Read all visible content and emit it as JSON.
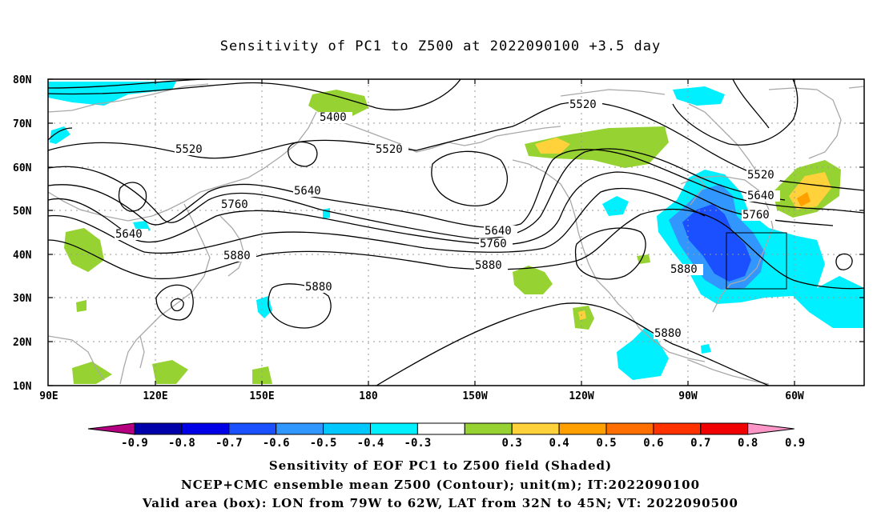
{
  "title": "Sensitivity of PC1 to Z500 at 2022090100 +3.5 day",
  "map": {
    "lat_labels": [
      "80N",
      "70N",
      "60N",
      "50N",
      "40N",
      "30N",
      "20N",
      "10N"
    ],
    "lon_labels": [
      "90E",
      "120E",
      "150E",
      "180",
      "150W",
      "120W",
      "90W",
      "60W"
    ],
    "contour_labels": [
      {
        "text": "5400"
      },
      {
        "text": "5520"
      },
      {
        "text": "5520"
      },
      {
        "text": "5520"
      },
      {
        "text": "5520"
      },
      {
        "text": "5640"
      },
      {
        "text": "5640"
      },
      {
        "text": "5640"
      },
      {
        "text": "5640"
      },
      {
        "text": "5760"
      },
      {
        "text": "5760"
      },
      {
        "text": "5760"
      },
      {
        "text": "5880"
      },
      {
        "text": "5880"
      },
      {
        "text": "5880"
      },
      {
        "text": "5880"
      },
      {
        "text": "5880"
      }
    ],
    "valid_box": {
      "lon_from": "79W",
      "lon_to": "62W",
      "lat_from": "32N",
      "lat_to": "45N"
    }
  },
  "colorbar": {
    "labels": [
      "-0.9",
      "-0.8",
      "-0.7",
      "-0.6",
      "-0.5",
      "-0.4",
      "-0.3",
      "0.3",
      "0.4",
      "0.5",
      "0.6",
      "0.7",
      "0.8",
      "0.9"
    ],
    "colors": [
      "#b40080",
      "#0000aa",
      "#0000e6",
      "#1a50ff",
      "#3296ff",
      "#00c8ff",
      "#00f0ff",
      "#ffffff",
      "#96d232",
      "#ffd23c",
      "#ffa000",
      "#ff6e00",
      "#ff3200",
      "#f00000",
      "#ff96c8"
    ]
  },
  "captions": {
    "line1": "Sensitivity of EOF PC1 to Z500 field (Shaded)",
    "line2": "NCEP+CMC ensemble mean Z500 (Contour); unit(m); IT:2022090100",
    "line3": "Valid area (box): LON from 79W to 62W, LAT from 32N to 45N; VT: 2022090500"
  }
}
